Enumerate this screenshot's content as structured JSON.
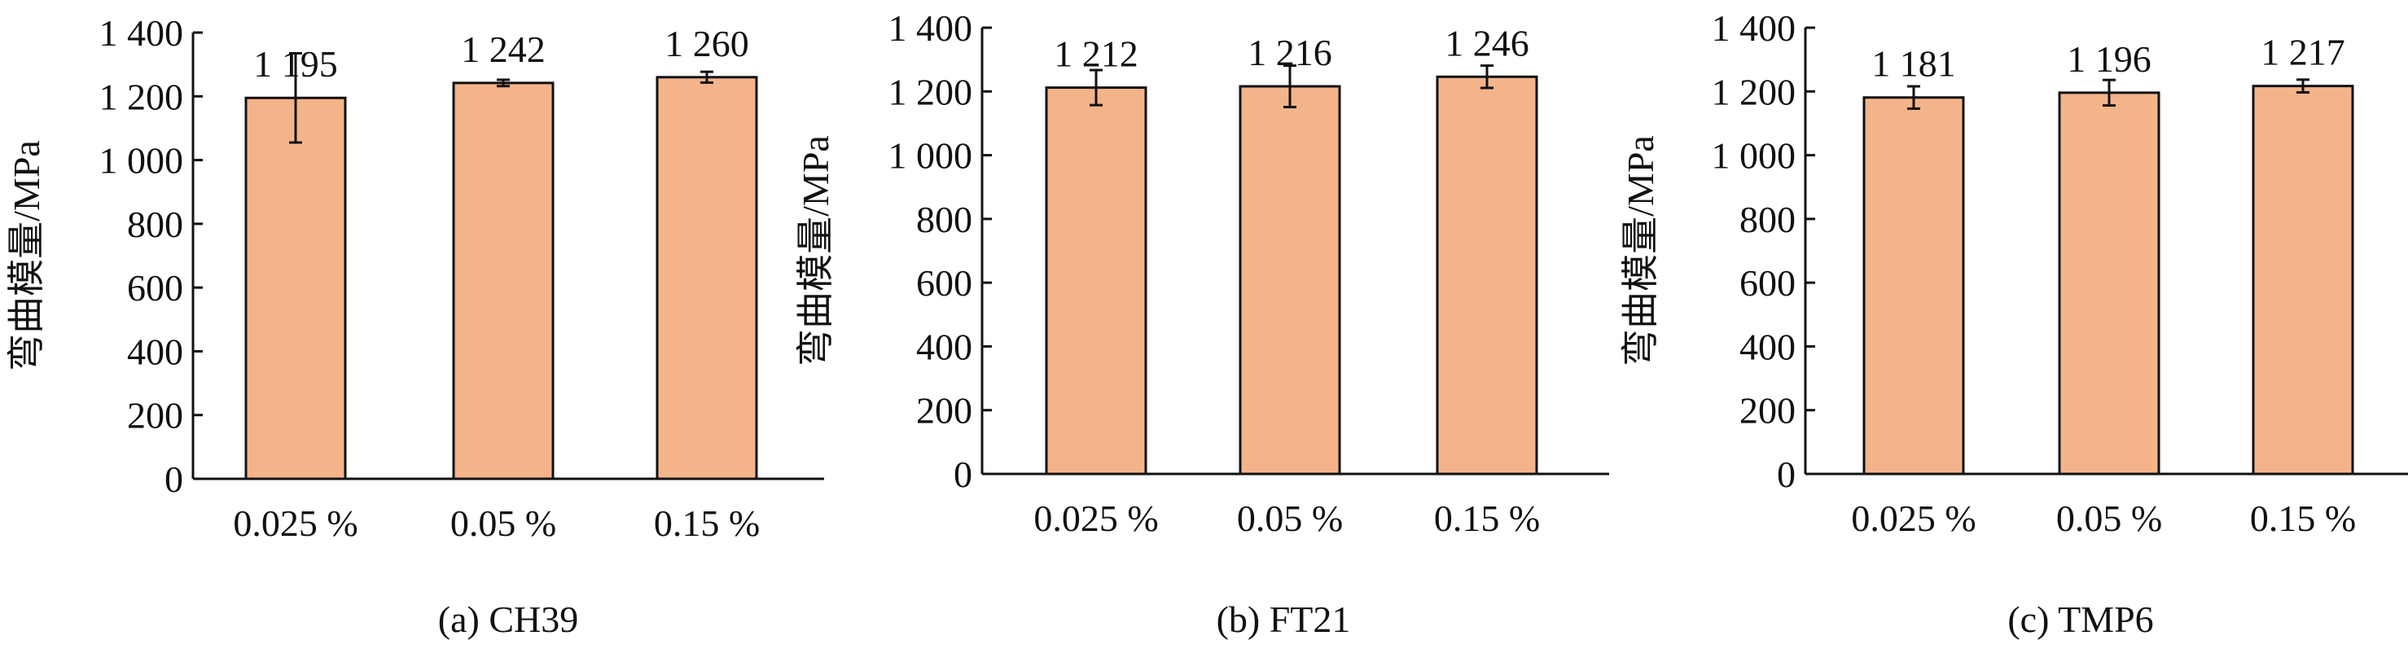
{
  "figure": {
    "bar_fill": "#f4b48a",
    "bar_stroke": "#111111"
  },
  "chart_data": [
    {
      "type": "bar",
      "caption": "(a) CH39",
      "ylabel": "弯曲模量/MPa",
      "categories": [
        "0.025 %",
        "0.05 %",
        "0.15 %"
      ],
      "values": [
        1195,
        1242,
        1260
      ],
      "value_labels": [
        "1 195",
        "1 242",
        "1 260"
      ],
      "error": [
        140,
        10,
        17
      ],
      "ylim": [
        0,
        1400
      ],
      "yticks": [
        0,
        200,
        400,
        600,
        800,
        1000,
        1200,
        1400
      ],
      "ytick_labels": [
        "0",
        "200",
        "400",
        "600",
        "800",
        "1 000",
        "1 200",
        "1 400"
      ]
    },
    {
      "type": "bar",
      "caption": "(b) FT21",
      "ylabel": "弯曲模量/MPa",
      "categories": [
        "0.025 %",
        "0.05 %",
        "0.15 %"
      ],
      "values": [
        1212,
        1216,
        1246
      ],
      "value_labels": [
        "1 212",
        "1 216",
        "1 246"
      ],
      "error": [
        55,
        65,
        35
      ],
      "ylim": [
        0,
        1400
      ],
      "yticks": [
        0,
        200,
        400,
        600,
        800,
        1000,
        1200,
        1400
      ],
      "ytick_labels": [
        "0",
        "200",
        "400",
        "600",
        "800",
        "1 000",
        "1 200",
        "1 400"
      ]
    },
    {
      "type": "bar",
      "caption": "(c) TMP6",
      "ylabel": "弯曲模量/MPa",
      "categories": [
        "0.025 %",
        "0.05 %",
        "0.15 %"
      ],
      "values": [
        1181,
        1196,
        1217
      ],
      "value_labels": [
        "1 181",
        "1 196",
        "1 217"
      ],
      "error": [
        35,
        40,
        20
      ],
      "ylim": [
        0,
        1400
      ],
      "yticks": [
        0,
        200,
        400,
        600,
        800,
        1000,
        1200,
        1400
      ],
      "ytick_labels": [
        "0",
        "200",
        "400",
        "600",
        "800",
        "1 000",
        "1 200",
        "1 400"
      ]
    }
  ]
}
